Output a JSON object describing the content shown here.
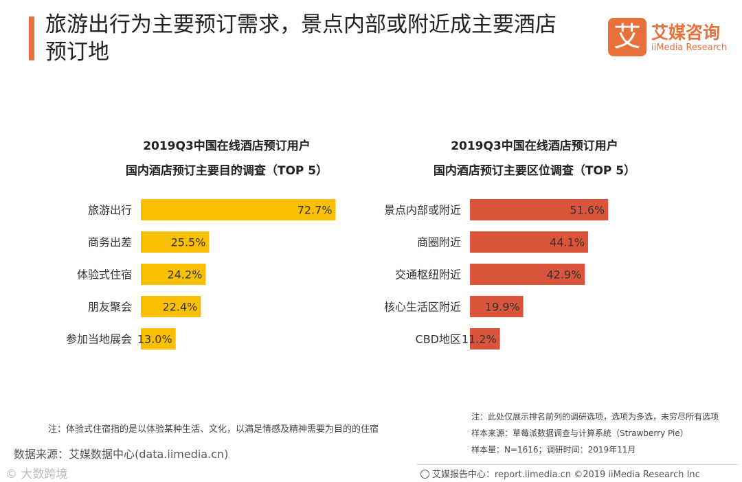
{
  "header": {
    "title_line1": "旅游出行为主要预订需求，景点内部或附近成主要酒店",
    "title_line2": "预订地"
  },
  "logo": {
    "mark": "艾",
    "cn": "艾媒咨询",
    "en": "iiMedia Research",
    "mark_icon": "iimedia-logo-icon"
  },
  "colors": {
    "accent": "#e8703a",
    "left_bar": "#f8c000",
    "right_bar": "#d9543a"
  },
  "chart_data": [
    {
      "type": "bar",
      "orientation": "horizontal",
      "title": "2019Q3中国在线酒店预订用户",
      "subtitle": "国内酒店预订主要目的调查（TOP 5）",
      "categories": [
        "旅游出行",
        "商务出差",
        "体验式住宿",
        "朋友聚会",
        "参加当地展会"
      ],
      "values": [
        72.7,
        25.5,
        24.2,
        22.4,
        13.0
      ],
      "labels": [
        "72.7%",
        "25.5%",
        "24.2%",
        "22.4%",
        "13.0%"
      ],
      "unit": "%",
      "xlim": [
        0,
        80
      ],
      "grid": false,
      "legend": "none"
    },
    {
      "type": "bar",
      "orientation": "horizontal",
      "title": "2019Q3中国在线酒店预订用户",
      "subtitle": "国内酒店预订主要区位调查（TOP 5）",
      "categories": [
        "景点内部或附近",
        "商圈附近",
        "交通枢纽附近",
        "核心生活区附近",
        "CBD地区"
      ],
      "values": [
        51.6,
        44.1,
        42.9,
        19.9,
        11.2
      ],
      "labels": [
        "51.6%",
        "44.1%",
        "42.9%",
        "19.9%",
        "11.2%"
      ],
      "unit": "%",
      "xlim": [
        0,
        80
      ],
      "grid": false,
      "legend": "none"
    }
  ],
  "notes": {
    "left_note": "注：体验式住宿指的是以体验某种生活、文化，以满足情感及精神需要为目的的住宿",
    "source": "数据来源：艾媒数据中心(data.iimedia.cn)",
    "watermark": "© 大数跨境",
    "right_note1": "注：此处仅展示排名前列的调研选项，选项为多选，未穷尽所有选项",
    "right_note2": "样本来源：草莓派数据调查与计算系统（Strawberry Pie）",
    "right_note3": "样本量：N=1616；调研时间：2019年11月"
  },
  "footer": {
    "text": "艾媒报告中心：report.iimedia.cn ©2019 iiMedia Research Inc",
    "icon": "globe-icon"
  }
}
